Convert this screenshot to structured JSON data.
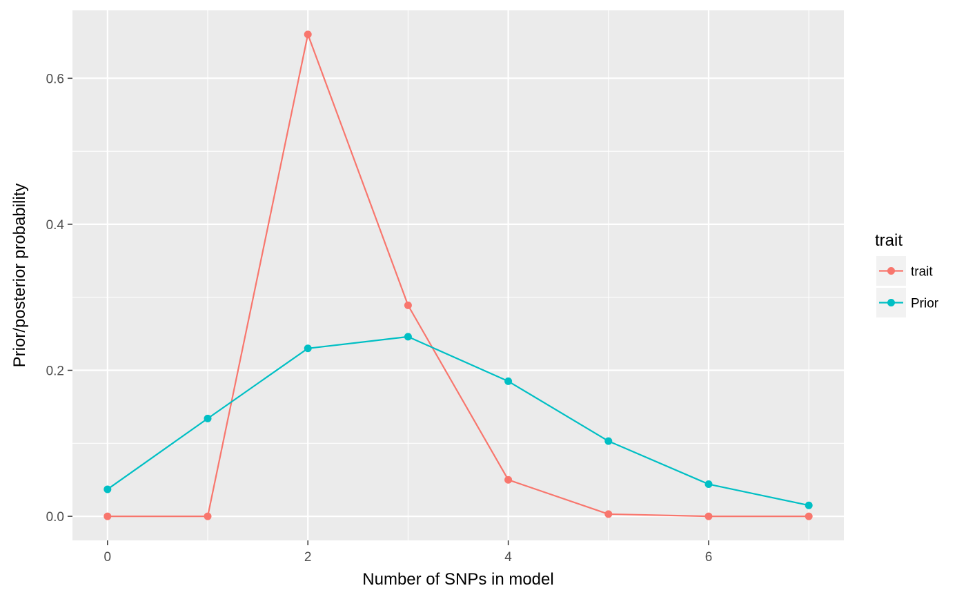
{
  "chart_data": {
    "type": "line",
    "x": [
      0,
      1,
      2,
      3,
      4,
      5,
      6,
      7
    ],
    "series": [
      {
        "name": "trait",
        "color": "#F8766D",
        "values": [
          0.0,
          0.0,
          0.66,
          0.289,
          0.05,
          0.003,
          0.0,
          0.0
        ]
      },
      {
        "name": "Prior",
        "color": "#00BFC4",
        "values": [
          0.037,
          0.134,
          0.23,
          0.246,
          0.185,
          0.103,
          0.044,
          0.015
        ]
      }
    ],
    "xlabel": "Number of SNPs in model",
    "ylabel": "Prior/posterior probability",
    "xlim": [
      -0.35,
      7.35
    ],
    "ylim": [
      -0.033,
      0.693
    ],
    "x_ticks": [
      0,
      2,
      4,
      6
    ],
    "x_tick_labels": [
      "0",
      "2",
      "4",
      "6"
    ],
    "y_ticks": [
      0.0,
      0.2,
      0.4,
      0.6
    ],
    "y_tick_labels": [
      "0.0",
      "0.2",
      "0.4",
      "0.6"
    ],
    "grid": true,
    "legend": {
      "title": "trait",
      "position": "right"
    },
    "panel_background": "#EBEBEB",
    "grid_color": "#FFFFFF"
  }
}
